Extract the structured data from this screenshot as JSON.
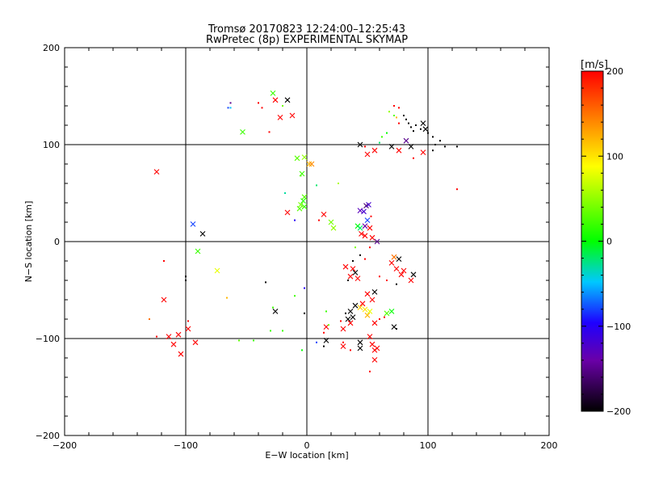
{
  "chart_data": {
    "type": "scatter",
    "title": "Tromsø 20170823 12:24:00–12:25:43",
    "subtitle": "RwPretec (8p) EXPERIMENTAL SKYMAP",
    "xlabel": "E−W location [km]",
    "ylabel": "N−S location [km]",
    "xlim": [
      -200,
      200
    ],
    "ylim": [
      -200,
      200
    ],
    "xticks": [
      -200,
      -100,
      0,
      100,
      200
    ],
    "yticks": [
      -200,
      -100,
      0,
      100,
      200
    ],
    "xtick_labels": [
      "−200",
      "−100",
      "0",
      "100",
      "200"
    ],
    "ytick_labels": [
      "−200",
      "−100",
      "0",
      "100",
      "200"
    ],
    "grid_lines": [
      -100,
      0,
      100
    ],
    "colorbar": {
      "label": "[m/s]",
      "min": -200,
      "max": 200,
      "ticks": [
        200,
        100,
        0,
        -100,
        -200
      ],
      "tick_labels": [
        "200",
        "100",
        "0",
        "−100",
        "−200"
      ],
      "colormap": [
        "#000000",
        "#6a00a8",
        "#1e00ff",
        "#00c8ff",
        "#00ff00",
        "#ffff00",
        "#ff8000",
        "#ff0000"
      ]
    },
    "legend": "colorbar on the right",
    "markers": {
      "x": "large velocity estimate",
      "dot": "small velocity estimate"
    },
    "points": [
      {
        "x": -28,
        "y": 153,
        "v": 20,
        "m": "x"
      },
      {
        "x": -26,
        "y": 146,
        "v": 200,
        "m": "x"
      },
      {
        "x": -16,
        "y": 146,
        "v": -200,
        "m": "x"
      },
      {
        "x": -22,
        "y": 128,
        "v": 200,
        "m": "x"
      },
      {
        "x": -12,
        "y": 130,
        "v": 200,
        "m": "x"
      },
      {
        "x": -40,
        "y": 143,
        "v": 200,
        "m": "d"
      },
      {
        "x": -63,
        "y": 143,
        "v": -150,
        "m": "d"
      },
      {
        "x": -65,
        "y": 138,
        "v": -80,
        "m": "d"
      },
      {
        "x": -63,
        "y": 138,
        "v": -50,
        "m": "d"
      },
      {
        "x": -37,
        "y": 138,
        "v": 200,
        "m": "d"
      },
      {
        "x": -53,
        "y": 113,
        "v": 20,
        "m": "x"
      },
      {
        "x": -31,
        "y": 113,
        "v": 200,
        "m": "d"
      },
      {
        "x": -124,
        "y": 72,
        "v": 200,
        "m": "x"
      },
      {
        "x": -8,
        "y": 86,
        "v": 30,
        "m": "x"
      },
      {
        "x": -2,
        "y": 87,
        "v": 50,
        "m": "x"
      },
      {
        "x": 2,
        "y": 80,
        "v": 120,
        "m": "x"
      },
      {
        "x": 4,
        "y": 80,
        "v": 140,
        "m": "x"
      },
      {
        "x": -4,
        "y": 70,
        "v": 20,
        "m": "x"
      },
      {
        "x": -5,
        "y": 68,
        "v": 30,
        "m": "d"
      },
      {
        "x": 8,
        "y": 58,
        "v": -20,
        "m": "d"
      },
      {
        "x": 26,
        "y": 60,
        "v": 60,
        "m": "d"
      },
      {
        "x": -2,
        "y": 46,
        "v": 30,
        "m": "x"
      },
      {
        "x": -3,
        "y": 42,
        "v": 10,
        "m": "x"
      },
      {
        "x": -5,
        "y": 38,
        "v": 40,
        "m": "x"
      },
      {
        "x": -2,
        "y": 36,
        "v": 20,
        "m": "x"
      },
      {
        "x": -6,
        "y": 34,
        "v": 30,
        "m": "x"
      },
      {
        "x": -16,
        "y": 30,
        "v": 200,
        "m": "x"
      },
      {
        "x": -18,
        "y": 50,
        "v": -30,
        "m": "d"
      },
      {
        "x": 14,
        "y": 28,
        "v": 200,
        "m": "x"
      },
      {
        "x": 20,
        "y": 20,
        "v": 40,
        "m": "x"
      },
      {
        "x": 22,
        "y": 14,
        "v": 50,
        "m": "x"
      },
      {
        "x": 10,
        "y": 22,
        "v": 200,
        "m": "d"
      },
      {
        "x": -10,
        "y": 22,
        "v": -100,
        "m": "d"
      },
      {
        "x": 49,
        "y": 37,
        "v": -160,
        "m": "x"
      },
      {
        "x": 51,
        "y": 38,
        "v": -120,
        "m": "x"
      },
      {
        "x": 47,
        "y": 31,
        "v": -120,
        "m": "x"
      },
      {
        "x": 44,
        "y": 32,
        "v": -130,
        "m": "x"
      },
      {
        "x": 53,
        "y": 26,
        "v": 200,
        "m": "d"
      },
      {
        "x": 50,
        "y": 22,
        "v": -80,
        "m": "x"
      },
      {
        "x": 42,
        "y": 16,
        "v": 0,
        "m": "x"
      },
      {
        "x": 44,
        "y": 14,
        "v": -20,
        "m": "x"
      },
      {
        "x": 48,
        "y": 16,
        "v": -140,
        "m": "x"
      },
      {
        "x": 52,
        "y": 14,
        "v": 200,
        "m": "x"
      },
      {
        "x": 45,
        "y": 8,
        "v": 200,
        "m": "x"
      },
      {
        "x": 48,
        "y": 6,
        "v": 200,
        "m": "x"
      },
      {
        "x": 54,
        "y": 4,
        "v": 200,
        "m": "x"
      },
      {
        "x": 58,
        "y": 0,
        "v": -150,
        "m": "x"
      },
      {
        "x": 40,
        "y": -6,
        "v": 40,
        "m": "d"
      },
      {
        "x": 52,
        "y": -6,
        "v": 200,
        "m": "d"
      },
      {
        "x": 44,
        "y": -14,
        "v": -200,
        "m": "d"
      },
      {
        "x": 48,
        "y": -18,
        "v": 200,
        "m": "d"
      },
      {
        "x": 38,
        "y": -20,
        "v": -200,
        "m": "d"
      },
      {
        "x": 32,
        "y": -26,
        "v": 200,
        "m": "x"
      },
      {
        "x": 38,
        "y": -28,
        "v": 200,
        "m": "x"
      },
      {
        "x": 40,
        "y": -32,
        "v": -200,
        "m": "x"
      },
      {
        "x": 36,
        "y": -36,
        "v": 200,
        "m": "x"
      },
      {
        "x": 42,
        "y": -38,
        "v": 200,
        "m": "x"
      },
      {
        "x": 34,
        "y": -40,
        "v": -200,
        "m": "d"
      },
      {
        "x": 72,
        "y": -16,
        "v": 150,
        "m": "x"
      },
      {
        "x": 76,
        "y": -18,
        "v": -200,
        "m": "x"
      },
      {
        "x": 70,
        "y": -22,
        "v": 200,
        "m": "x"
      },
      {
        "x": 74,
        "y": -28,
        "v": 200,
        "m": "x"
      },
      {
        "x": 78,
        "y": -34,
        "v": 200,
        "m": "x"
      },
      {
        "x": 80,
        "y": -30,
        "v": 200,
        "m": "x"
      },
      {
        "x": 88,
        "y": -34,
        "v": -200,
        "m": "x"
      },
      {
        "x": 86,
        "y": -40,
        "v": 200,
        "m": "x"
      },
      {
        "x": 60,
        "y": -36,
        "v": 200,
        "m": "d"
      },
      {
        "x": 66,
        "y": -40,
        "v": 200,
        "m": "d"
      },
      {
        "x": 74,
        "y": -44,
        "v": -200,
        "m": "d"
      },
      {
        "x": 56,
        "y": -52,
        "v": -200,
        "m": "x"
      },
      {
        "x": 50,
        "y": -54,
        "v": 200,
        "m": "x"
      },
      {
        "x": 54,
        "y": -60,
        "v": 200,
        "m": "x"
      },
      {
        "x": 46,
        "y": -64,
        "v": 200,
        "m": "x"
      },
      {
        "x": 44,
        "y": -68,
        "v": 110,
        "m": "x"
      },
      {
        "x": 48,
        "y": -70,
        "v": 100,
        "m": "x"
      },
      {
        "x": 52,
        "y": -72,
        "v": 80,
        "m": "x"
      },
      {
        "x": 50,
        "y": -76,
        "v": 120,
        "m": "x"
      },
      {
        "x": 40,
        "y": -66,
        "v": -200,
        "m": "x"
      },
      {
        "x": 36,
        "y": -72,
        "v": -200,
        "m": "x"
      },
      {
        "x": 38,
        "y": -78,
        "v": -200,
        "m": "x"
      },
      {
        "x": 34,
        "y": -80,
        "v": -200,
        "m": "x"
      },
      {
        "x": 32,
        "y": -74,
        "v": -200,
        "m": "d"
      },
      {
        "x": 28,
        "y": -82,
        "v": 200,
        "m": "d"
      },
      {
        "x": 36,
        "y": -84,
        "v": 200,
        "m": "x"
      },
      {
        "x": 30,
        "y": -90,
        "v": 200,
        "m": "x"
      },
      {
        "x": 56,
        "y": -84,
        "v": 200,
        "m": "x"
      },
      {
        "x": 60,
        "y": -80,
        "v": 200,
        "m": "d"
      },
      {
        "x": 64,
        "y": -78,
        "v": 200,
        "m": "d"
      },
      {
        "x": 66,
        "y": -74,
        "v": 30,
        "m": "x"
      },
      {
        "x": 70,
        "y": -72,
        "v": 0,
        "m": "x"
      },
      {
        "x": 72,
        "y": -88,
        "v": -200,
        "m": "x"
      },
      {
        "x": 74,
        "y": -90,
        "v": -200,
        "m": "d"
      },
      {
        "x": 52,
        "y": -98,
        "v": 200,
        "m": "x"
      },
      {
        "x": 54,
        "y": -106,
        "v": 200,
        "m": "x"
      },
      {
        "x": 58,
        "y": -110,
        "v": 200,
        "m": "x"
      },
      {
        "x": 56,
        "y": -112,
        "v": 200,
        "m": "x"
      },
      {
        "x": 56,
        "y": -122,
        "v": 200,
        "m": "x"
      },
      {
        "x": 52,
        "y": -134,
        "v": 200,
        "m": "d"
      },
      {
        "x": 44,
        "y": -104,
        "v": -200,
        "m": "x"
      },
      {
        "x": 44,
        "y": -110,
        "v": -200,
        "m": "x"
      },
      {
        "x": 30,
        "y": -104,
        "v": 200,
        "m": "d"
      },
      {
        "x": 30,
        "y": -108,
        "v": 200,
        "m": "x"
      },
      {
        "x": 36,
        "y": -112,
        "v": 200,
        "m": "d"
      },
      {
        "x": 16,
        "y": -102,
        "v": -200,
        "m": "x"
      },
      {
        "x": 14,
        "y": -108,
        "v": -200,
        "m": "d"
      },
      {
        "x": 8,
        "y": -104,
        "v": -80,
        "m": "d"
      },
      {
        "x": 16,
        "y": -88,
        "v": 200,
        "m": "x"
      },
      {
        "x": 18,
        "y": -86,
        "v": 40,
        "m": "d"
      },
      {
        "x": 14,
        "y": -94,
        "v": 200,
        "m": "d"
      },
      {
        "x": -26,
        "y": -72,
        "v": -200,
        "m": "x"
      },
      {
        "x": -28,
        "y": -68,
        "v": 20,
        "m": "d"
      },
      {
        "x": -34,
        "y": -42,
        "v": -200,
        "m": "d"
      },
      {
        "x": -2,
        "y": -48,
        "v": -100,
        "m": "d"
      },
      {
        "x": -10,
        "y": -56,
        "v": 20,
        "m": "d"
      },
      {
        "x": -2,
        "y": -74,
        "v": -200,
        "m": "d"
      },
      {
        "x": -30,
        "y": -92,
        "v": 20,
        "m": "d"
      },
      {
        "x": -20,
        "y": -92,
        "v": 20,
        "m": "d"
      },
      {
        "x": -4,
        "y": -112,
        "v": 0,
        "m": "d"
      },
      {
        "x": 16,
        "y": -72,
        "v": 20,
        "m": "d"
      },
      {
        "x": -74,
        "y": -30,
        "v": 80,
        "m": "x"
      },
      {
        "x": -90,
        "y": -10,
        "v": 20,
        "m": "x"
      },
      {
        "x": -86,
        "y": 8,
        "v": -200,
        "m": "x"
      },
      {
        "x": -94,
        "y": 18,
        "v": -80,
        "m": "x"
      },
      {
        "x": -100,
        "y": -36,
        "v": -200,
        "m": "d"
      },
      {
        "x": -100,
        "y": -40,
        "v": -200,
        "m": "d"
      },
      {
        "x": -118,
        "y": -20,
        "v": 200,
        "m": "d"
      },
      {
        "x": -118,
        "y": -60,
        "v": 200,
        "m": "x"
      },
      {
        "x": -130,
        "y": -80,
        "v": 150,
        "m": "d"
      },
      {
        "x": -98,
        "y": -82,
        "v": 200,
        "m": "d"
      },
      {
        "x": -98,
        "y": -90,
        "v": 200,
        "m": "x"
      },
      {
        "x": -106,
        "y": -96,
        "v": 200,
        "m": "x"
      },
      {
        "x": -114,
        "y": -98,
        "v": 200,
        "m": "x"
      },
      {
        "x": -110,
        "y": -106,
        "v": 200,
        "m": "x"
      },
      {
        "x": -104,
        "y": -116,
        "v": 200,
        "m": "x"
      },
      {
        "x": -124,
        "y": -98,
        "v": 200,
        "m": "d"
      },
      {
        "x": -92,
        "y": -104,
        "v": 200,
        "m": "x"
      },
      {
        "x": -56,
        "y": -102,
        "v": 30,
        "m": "d"
      },
      {
        "x": -44,
        "y": -102,
        "v": 20,
        "m": "d"
      },
      {
        "x": -66,
        "y": -58,
        "v": 120,
        "m": "d"
      },
      {
        "x": -20,
        "y": 140,
        "v": 40,
        "m": "d"
      },
      {
        "x": 72,
        "y": 140,
        "v": 200,
        "m": "d"
      },
      {
        "x": 76,
        "y": 138,
        "v": 200,
        "m": "d"
      },
      {
        "x": 68,
        "y": 134,
        "v": 50,
        "m": "d"
      },
      {
        "x": 72,
        "y": 130,
        "v": 30,
        "m": "d"
      },
      {
        "x": 74,
        "y": 128,
        "v": 120,
        "m": "d"
      },
      {
        "x": 76,
        "y": 122,
        "v": 200,
        "m": "d"
      },
      {
        "x": 80,
        "y": 130,
        "v": -200,
        "m": "d"
      },
      {
        "x": 82,
        "y": 126,
        "v": -200,
        "m": "d"
      },
      {
        "x": 84,
        "y": 122,
        "v": -200,
        "m": "d"
      },
      {
        "x": 86,
        "y": 118,
        "v": -200,
        "m": "d"
      },
      {
        "x": 88,
        "y": 114,
        "v": -200,
        "m": "d"
      },
      {
        "x": 90,
        "y": 120,
        "v": -200,
        "m": "d"
      },
      {
        "x": 94,
        "y": 116,
        "v": -200,
        "m": "d"
      },
      {
        "x": 96,
        "y": 122,
        "v": -200,
        "m": "x"
      },
      {
        "x": 98,
        "y": 116,
        "v": -200,
        "m": "x"
      },
      {
        "x": 100,
        "y": 112,
        "v": -200,
        "m": "d"
      },
      {
        "x": 104,
        "y": 108,
        "v": -200,
        "m": "d"
      },
      {
        "x": 110,
        "y": 104,
        "v": -200,
        "m": "d"
      },
      {
        "x": 106,
        "y": 100,
        "v": -200,
        "m": "d"
      },
      {
        "x": 114,
        "y": 98,
        "v": -200,
        "m": "d"
      },
      {
        "x": 124,
        "y": 98,
        "v": -200,
        "m": "d"
      },
      {
        "x": 104,
        "y": 94,
        "v": -200,
        "m": "d"
      },
      {
        "x": 62,
        "y": 108,
        "v": 20,
        "m": "d"
      },
      {
        "x": 66,
        "y": 112,
        "v": 0,
        "m": "d"
      },
      {
        "x": 60,
        "y": 102,
        "v": -20,
        "m": "d"
      },
      {
        "x": 48,
        "y": 98,
        "v": 200,
        "m": "d"
      },
      {
        "x": 44,
        "y": 100,
        "v": -200,
        "m": "x"
      },
      {
        "x": 50,
        "y": 90,
        "v": 200,
        "m": "x"
      },
      {
        "x": 56,
        "y": 94,
        "v": 200,
        "m": "x"
      },
      {
        "x": 70,
        "y": 98,
        "v": -200,
        "m": "x"
      },
      {
        "x": 76,
        "y": 94,
        "v": 200,
        "m": "x"
      },
      {
        "x": 86,
        "y": 98,
        "v": -200,
        "m": "x"
      },
      {
        "x": 82,
        "y": 104,
        "v": -150,
        "m": "x"
      },
      {
        "x": 96,
        "y": 92,
        "v": 200,
        "m": "x"
      },
      {
        "x": 88,
        "y": 86,
        "v": 200,
        "m": "d"
      },
      {
        "x": 124,
        "y": 54,
        "v": 200,
        "m": "d"
      }
    ]
  }
}
